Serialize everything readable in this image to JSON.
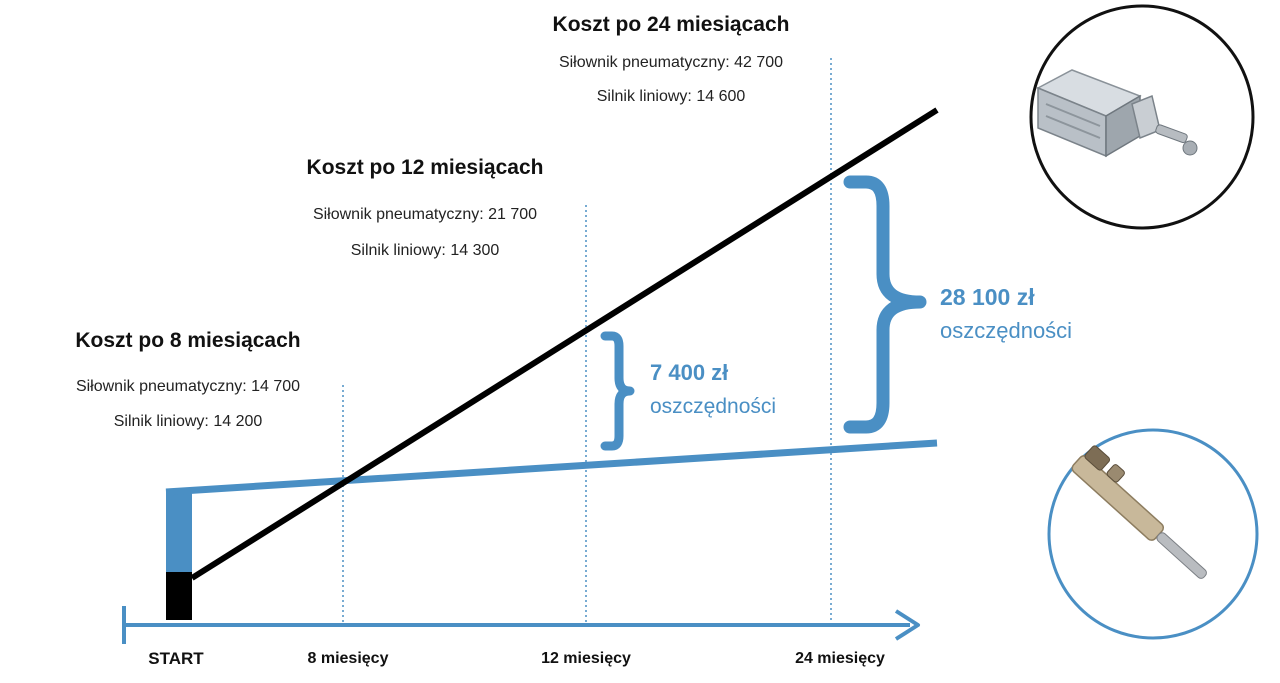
{
  "chart_data": {
    "type": "line",
    "x_labels": [
      "START",
      "8 miesięcy",
      "12 miesięcy",
      "24 miesięcy"
    ],
    "checkpoints": [
      {
        "title": "Koszt po 8 miesiącach",
        "lines": [
          "Siłownik pneumatyczny: 14 700",
          "Silnik liniowy: 14 200"
        ]
      },
      {
        "title": "Koszt po 12 miesiącach",
        "lines": [
          "Siłownik pneumatyczny: 21 700",
          "Silnik liniowy: 14 300"
        ]
      },
      {
        "title": "Koszt po 24 miesiącach",
        "lines": [
          "Siłownik pneumatyczny: 42 700",
          "Silnik liniowy: 14 600"
        ]
      }
    ],
    "savings": [
      {
        "amount": "7 400 zł",
        "label": "oszczędności"
      },
      {
        "amount": "28 100 zł",
        "label": "oszczędności"
      }
    ],
    "series": [
      {
        "color": "#000000",
        "x": [
          0,
          8,
          12,
          24
        ],
        "y": [
          7700,
          14700,
          21700,
          42700
        ]
      },
      {
        "color": "#4a8fc4",
        "x": [
          0,
          8,
          12,
          24
        ],
        "y": [
          14000,
          14200,
          14300,
          14600
        ]
      }
    ],
    "colors": {
      "accent": "#4a8fc4",
      "pneumatic": "#000000"
    },
    "icons": [
      "pneumatic-cylinder-photo-icon",
      "linear-motor-photo-icon"
    ]
  }
}
